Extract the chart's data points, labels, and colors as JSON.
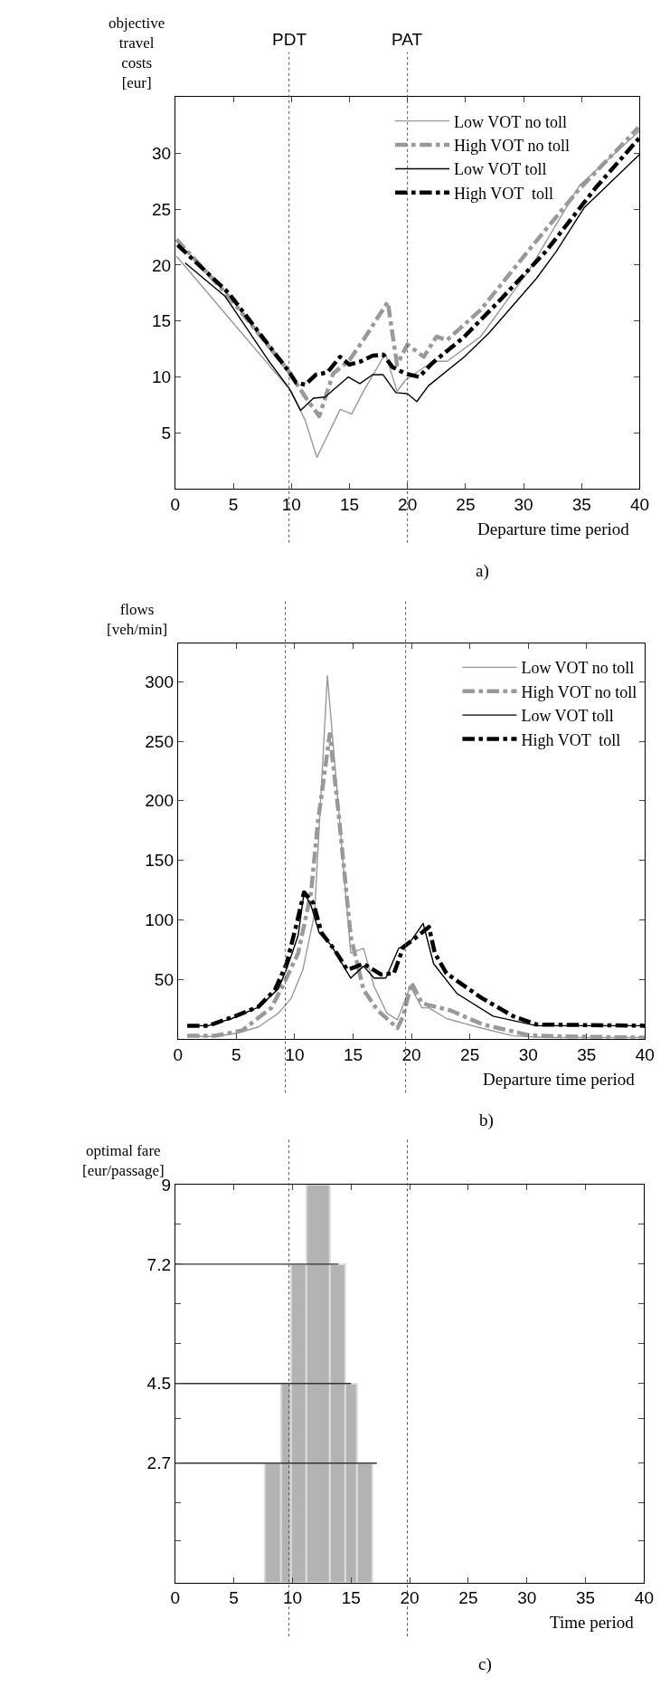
{
  "chart_data": [
    {
      "type": "line",
      "ylabel": "objective\ntravel\ncosts\n[eur]",
      "xlabel": "Departure time period",
      "annotations": [
        "a)"
      ],
      "xlim": [
        0,
        40
      ],
      "xticks": [
        0,
        5,
        10,
        15,
        20,
        25,
        30,
        35,
        40
      ],
      "ylim": [
        0,
        35
      ],
      "yticks": [
        5,
        10,
        15,
        20,
        25,
        30
      ],
      "legend": "top right",
      "ref_lines": [
        {
          "axis": "x",
          "value": 9.8,
          "label": "PDT",
          "line_style": "dotted",
          "color": "#555555"
        },
        {
          "axis": "x",
          "value": 20,
          "label": "PAT",
          "line_style": "dotted",
          "color": "#555555"
        }
      ],
      "series": [
        {
          "name": "Low VOT no toll",
          "color": "#999999",
          "line_style": "solid",
          "x": [
            0.1,
            10,
            11.2,
            12.2,
            14.2,
            15.2,
            16.2,
            18.1,
            19.1,
            19.8,
            22.2,
            23.4,
            26.3,
            30.5,
            34.8,
            40
          ],
          "values": [
            20.8,
            8.7,
            6.1,
            2.8,
            7.1,
            6.7,
            8.7,
            12.1,
            8.7,
            9.7,
            11.4,
            11.4,
            13.6,
            19.6,
            27.1,
            32
          ]
        },
        {
          "name": "High VOT no toll",
          "color": "#999999",
          "line_style": "dashdot",
          "x": [
            0.1,
            4.6,
            9.7,
            11.4,
            12.4,
            13.6,
            15,
            16.2,
            18.3,
            19.1,
            20,
            21.4,
            22.5,
            23.4,
            26.3,
            30.5,
            34.8,
            39.9
          ],
          "values": [
            22.3,
            17.2,
            10.6,
            7.9,
            6.5,
            10.3,
            11.5,
            13.3,
            16.7,
            11.1,
            12.9,
            11.8,
            13.6,
            13.3,
            16,
            21.4,
            26.8,
            32.3
          ]
        },
        {
          "name": "Low VOT toll",
          "color": "#000000",
          "line_style": "solid",
          "x": [
            0.85,
            4.3,
            8,
            9.8,
            10.8,
            11.9,
            12.9,
            14.9,
            15.9,
            17,
            17.9,
            19,
            20,
            20.8,
            21.8,
            24.9,
            27,
            31.1,
            32.8,
            35.2,
            40
          ],
          "values": [
            20.2,
            17.2,
            11.5,
            9,
            7,
            8.1,
            8.2,
            10,
            9.4,
            10.2,
            10.2,
            8.6,
            8.5,
            7.8,
            9.2,
            11.8,
            13.9,
            18.8,
            21.2,
            25.1,
            29.9
          ]
        },
        {
          "name": "High VOT  toll",
          "color": "#000000",
          "line_style": "dashdot",
          "x": [
            0.2,
            4.6,
            9.7,
            10.4,
            11.2,
            12.1,
            13.1,
            14.2,
            15,
            16,
            17,
            17.9,
            18.7,
            19.8,
            21,
            22.1,
            24.9,
            28,
            31.9,
            36.2,
            40
          ],
          "values": [
            21.8,
            17.5,
            10.6,
            9.5,
            9.3,
            10.2,
            10.4,
            11.8,
            11.1,
            11.4,
            11.9,
            12,
            10.9,
            10.3,
            10,
            11.2,
            13.6,
            16.9,
            21.2,
            26.9,
            31.4
          ]
        }
      ]
    },
    {
      "type": "line",
      "ylabel": "flows\n[veh/min]",
      "xlabel": "Departure time period",
      "annotations": [
        "b)"
      ],
      "xlim": [
        0,
        40
      ],
      "xticks": [
        0,
        5,
        10,
        15,
        20,
        25,
        30,
        35,
        40
      ],
      "ylim": [
        0,
        332
      ],
      "yticks": [
        50,
        100,
        150,
        200,
        250,
        300
      ],
      "legend": "top right",
      "ref_lines": [
        {
          "axis": "x",
          "value": 9.2,
          "line_style": "dotted",
          "color": "#555555"
        },
        {
          "axis": "x",
          "value": 19.5,
          "line_style": "dotted",
          "color": "#555555"
        }
      ],
      "series": [
        {
          "name": "Low VOT no toll",
          "color": "#999999",
          "line_style": "solid",
          "x": [
            0.8,
            3.2,
            5.2,
            6.9,
            8.6,
            9.7,
            10.7,
            11.7,
            12.8,
            13.7,
            14.8,
            15.9,
            16.8,
            17.9,
            18.8,
            19.9,
            20.9,
            21.5,
            23,
            25.6,
            28.7,
            31.5,
            40
          ],
          "values": [
            2,
            2,
            5,
            10,
            21.5,
            34,
            58,
            105,
            305,
            200,
            72,
            76,
            44,
            21.5,
            16,
            44,
            26,
            26,
            17,
            10,
            2.5,
            1,
            1
          ]
        },
        {
          "name": "High VOT no toll",
          "color": "#999999",
          "line_style": "dashdot",
          "x": [
            0.8,
            3.2,
            5.5,
            8,
            9.1,
            10.3,
            11.4,
            12,
            13,
            13.7,
            14.8,
            15.9,
            17.1,
            18.8,
            19.3,
            20,
            20.9,
            21.6,
            23.3,
            26.1,
            30.1,
            32.9,
            40
          ],
          "values": [
            2.5,
            2.5,
            7,
            26,
            47,
            72,
            123,
            183,
            256,
            195,
            86,
            41,
            24,
            9,
            19,
            47,
            30,
            28,
            24,
            12,
            3,
            2,
            1
          ]
        },
        {
          "name": "Low VOT toll",
          "color": "#000000",
          "line_style": "solid",
          "x": [
            0.8,
            2.6,
            4.6,
            7,
            8.6,
            9.4,
            10.3,
            10.8,
            11.4,
            12.1,
            13.1,
            14.8,
            15.9,
            16.8,
            17.8,
            18.9,
            19.8,
            21,
            21.9,
            23.9,
            27,
            30.7,
            40
          ],
          "values": [
            11,
            11,
            17,
            27,
            42,
            61,
            87,
            123,
            112,
            89,
            79,
            51,
            61,
            51,
            51,
            76,
            80,
            97,
            63,
            38,
            19,
            11,
            11
          ]
        },
        {
          "name": "High VOT  toll",
          "color": "#000000",
          "line_style": "dashdot",
          "x": [
            0.8,
            2.6,
            4.9,
            6.9,
            8.3,
            9.3,
            10.1,
            10.8,
            11.6,
            12.3,
            13.4,
            14.5,
            15.9,
            17.4,
            18.5,
            19.3,
            20.5,
            21.5,
            22,
            23,
            25.9,
            28.7,
            30.7,
            40
          ],
          "values": [
            11,
            11,
            19,
            27,
            41,
            63,
            94,
            123,
            114,
            89,
            75,
            58,
            63,
            54,
            55,
            77,
            86,
            94,
            72,
            55,
            35,
            19,
            12,
            11
          ]
        }
      ]
    },
    {
      "type": "histogram",
      "ylabel": "optimal fare\n[eur/passage]",
      "xlabel": "Time period",
      "annotations": [
        "c)"
      ],
      "xlim": [
        0,
        40
      ],
      "xticks": [
        0,
        5,
        10,
        15,
        20,
        25,
        30,
        35,
        40
      ],
      "ylim": [
        0,
        9
      ],
      "yticks": [
        {
          "value": 0.94,
          "label": null
        },
        {
          "value": 1.8,
          "label": null
        },
        2.7,
        {
          "value": 3.7,
          "label": null
        },
        4.5,
        {
          "value": 5.4,
          "label": null
        },
        {
          "value": 6.3,
          "label": null
        },
        7.2,
        {
          "value": 8.1,
          "label": null
        },
        9
      ],
      "bins": [
        7.6,
        9.0,
        9.9,
        11.2,
        13.2,
        14.5,
        15.5,
        16.8
      ],
      "values": [
        2.7,
        4.5,
        7.2,
        9,
        7.2,
        4.5,
        2.7
      ],
      "color": "#b3b3b3",
      "ref_lines": [
        {
          "axis": "x",
          "value": 9.7,
          "line_style": "dotted",
          "color": "#555555"
        },
        {
          "axis": "x",
          "value": 19.8,
          "line_style": "dotted",
          "color": "#555555"
        }
      ],
      "series": [
        {
          "type": "line",
          "color": "#333333",
          "line_style": "solid",
          "x": [
            0,
            13.9
          ],
          "values": [
            7.2,
            7.2
          ]
        },
        {
          "type": "line",
          "color": "#333333",
          "line_style": "solid",
          "x": [
            0,
            15
          ],
          "values": [
            4.5,
            4.5
          ]
        },
        {
          "type": "line",
          "color": "#333333",
          "line_style": "solid",
          "x": [
            0,
            17.2
          ],
          "values": [
            2.7,
            2.7
          ]
        }
      ]
    }
  ]
}
